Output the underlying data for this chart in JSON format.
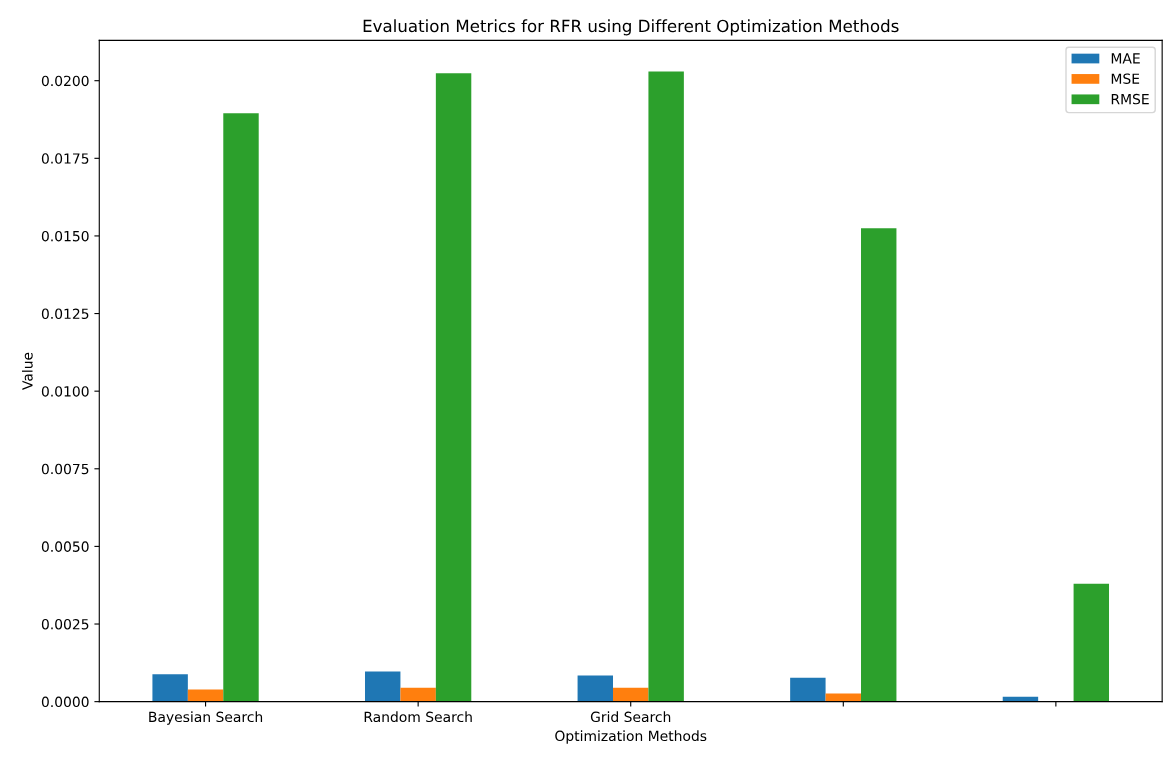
{
  "chart_data": {
    "type": "bar",
    "title": "Evaluation Metrics for RFR using Different Optimization Methods",
    "xlabel": "Optimization Methods",
    "ylabel": "Value",
    "categories": [
      "Bayesian Search",
      "Random Search",
      "Grid Search",
      null,
      null
    ],
    "series": [
      {
        "name": "MAE",
        "color": "#1f77b4",
        "values": [
          0.00088,
          0.00097,
          0.00084,
          0.00077,
          0.00016
        ]
      },
      {
        "name": "MSE",
        "color": "#ff7f0e",
        "values": [
          0.00039,
          0.00045,
          0.00045,
          0.00026,
          null
        ]
      },
      {
        "name": "RMSE",
        "color": "#2ca02c",
        "values": [
          0.01895,
          0.02024,
          0.0203,
          0.01525,
          0.0038
        ]
      }
    ],
    "ylim": [
      0,
      0.0213
    ],
    "yticks": [
      {
        "value": 0,
        "label": "0.0000"
      },
      {
        "value": 0.0025,
        "label": "0.0025"
      },
      {
        "value": 0.005,
        "label": "0.0050"
      },
      {
        "value": 0.0075,
        "label": "0.0075"
      },
      {
        "value": 0.01,
        "label": "0.0100"
      },
      {
        "value": 0.0125,
        "label": "0.0125"
      },
      {
        "value": 0.015,
        "label": "0.0150"
      },
      {
        "value": 0.0175,
        "label": "0.0175"
      },
      {
        "value": 0.02,
        "label": "0.0200"
      }
    ],
    "legend": "top right",
    "grid": false
  }
}
